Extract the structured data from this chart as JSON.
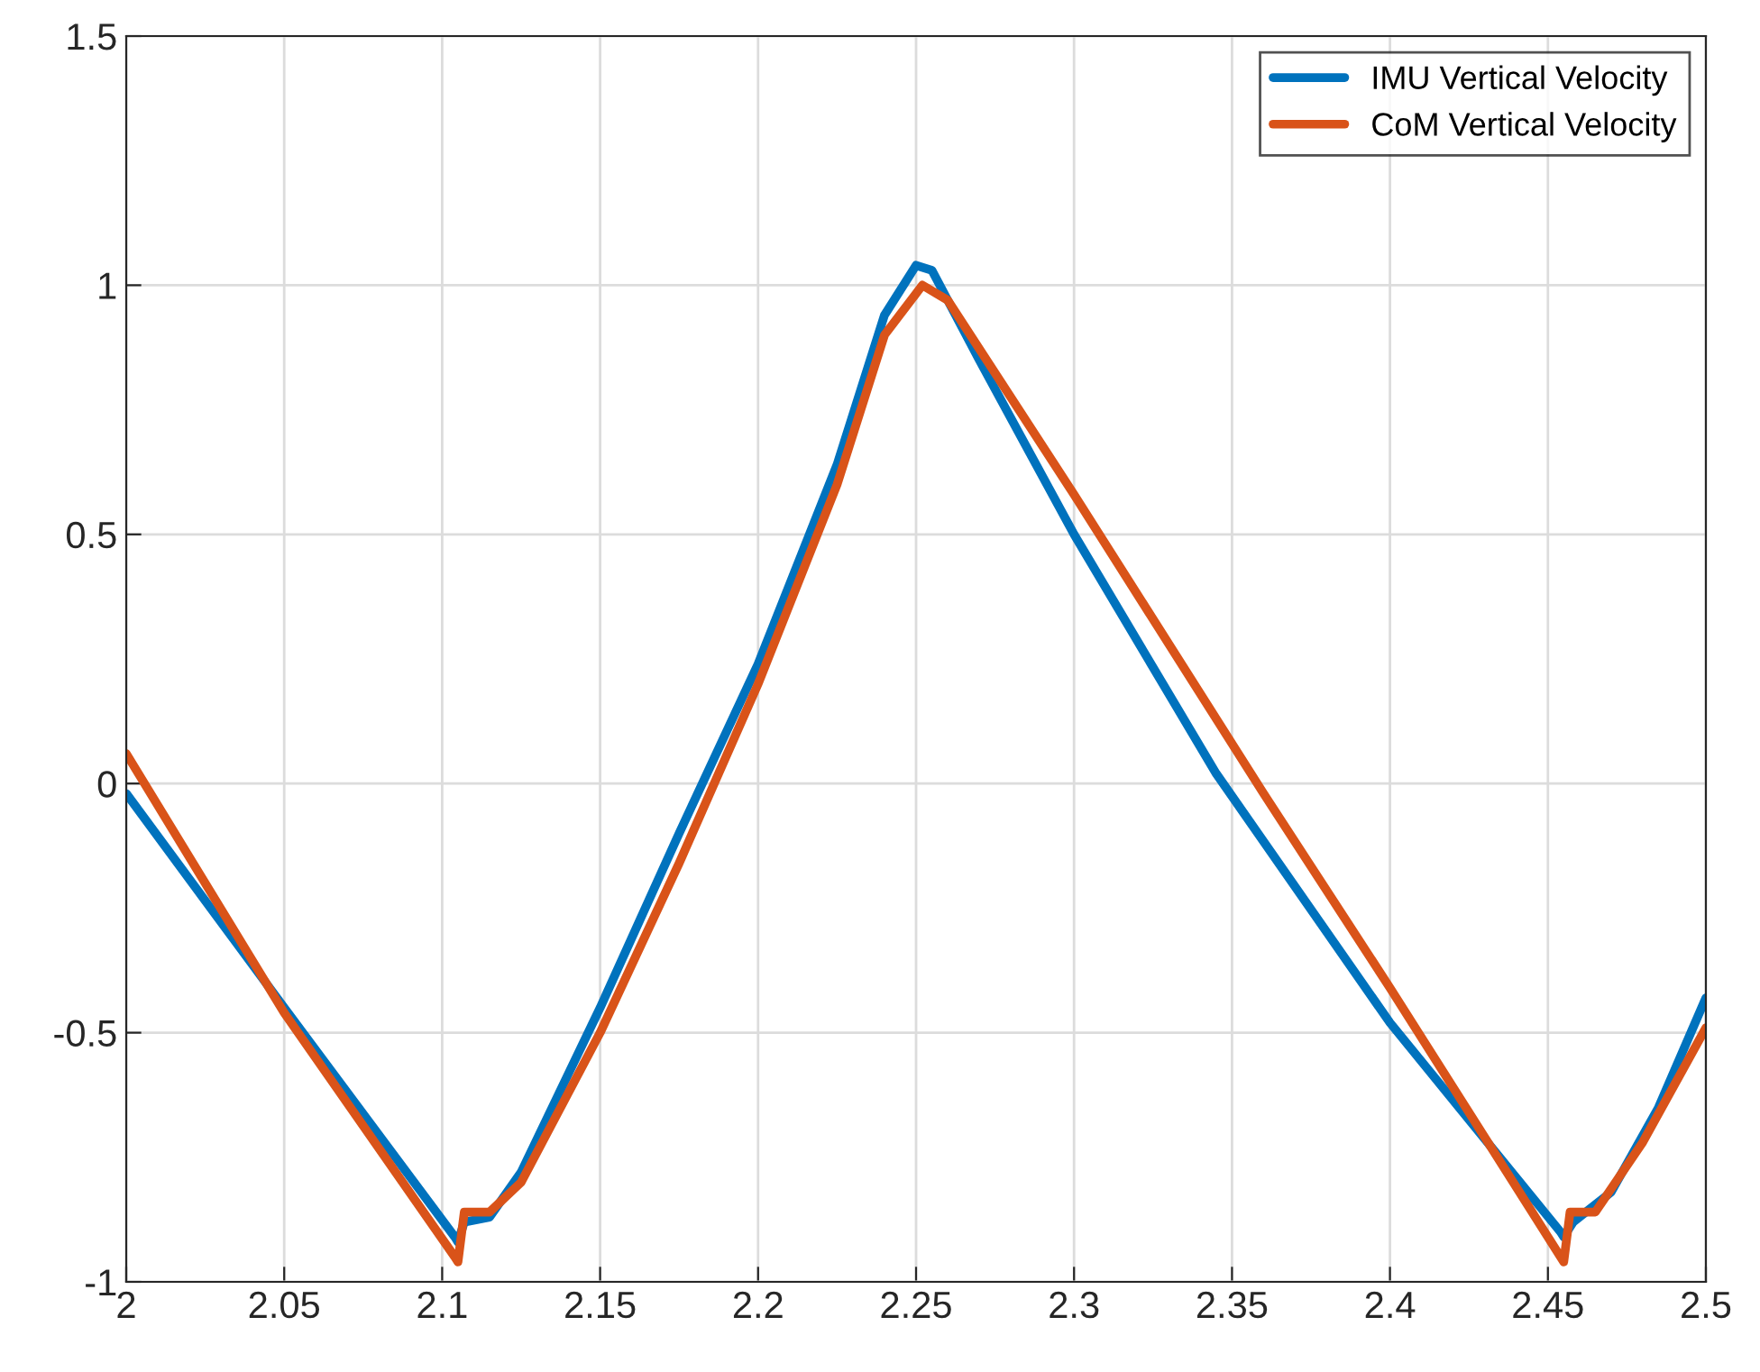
{
  "chart_data": {
    "type": "line",
    "xlim": [
      2,
      2.5
    ],
    "ylim": [
      -1,
      1.5
    ],
    "xticks": [
      2,
      2.05,
      2.1,
      2.15,
      2.2,
      2.25,
      2.3,
      2.35,
      2.4,
      2.45,
      2.5
    ],
    "yticks": [
      -1,
      -0.5,
      0,
      0.5,
      1,
      1.5
    ],
    "grid": true,
    "legend": "top right",
    "line_style": "solid",
    "marker": "none",
    "series": [
      {
        "name": "IMU Vertical Velocity",
        "color": "#0072bd",
        "x": [
          2,
          2.05,
          2.104,
          2.105,
          2.107,
          2.115,
          2.125,
          2.15,
          2.175,
          2.2,
          2.225,
          2.24,
          2.25,
          2.255,
          2.27,
          2.3,
          2.345,
          2.4,
          2.454,
          2.455,
          2.458,
          2.47,
          2.485,
          2.5
        ],
        "values": [
          -0.02,
          -0.45,
          -0.91,
          -0.92,
          -0.88,
          -0.87,
          -0.78,
          -0.45,
          -0.1,
          0.24,
          0.64,
          0.94,
          1.04,
          1.03,
          0.85,
          0.5,
          0.02,
          -0.48,
          -0.9,
          -0.91,
          -0.88,
          -0.82,
          -0.65,
          -0.43
        ]
      },
      {
        "name": "CoM Vertical Velocity",
        "color": "#d95319",
        "x": [
          2,
          2.05,
          2.104,
          2.105,
          2.107,
          2.115,
          2.125,
          2.15,
          2.175,
          2.2,
          2.225,
          2.24,
          2.252,
          2.26,
          2.3,
          2.36,
          2.4,
          2.454,
          2.455,
          2.457,
          2.465,
          2.48,
          2.5
        ],
        "values": [
          0.06,
          -0.46,
          -0.95,
          -0.96,
          -0.86,
          -0.86,
          -0.8,
          -0.5,
          -0.16,
          0.2,
          0.6,
          0.9,
          1.0,
          0.97,
          0.58,
          -0.02,
          -0.41,
          -0.95,
          -0.96,
          -0.86,
          -0.86,
          -0.72,
          -0.49
        ]
      }
    ]
  }
}
